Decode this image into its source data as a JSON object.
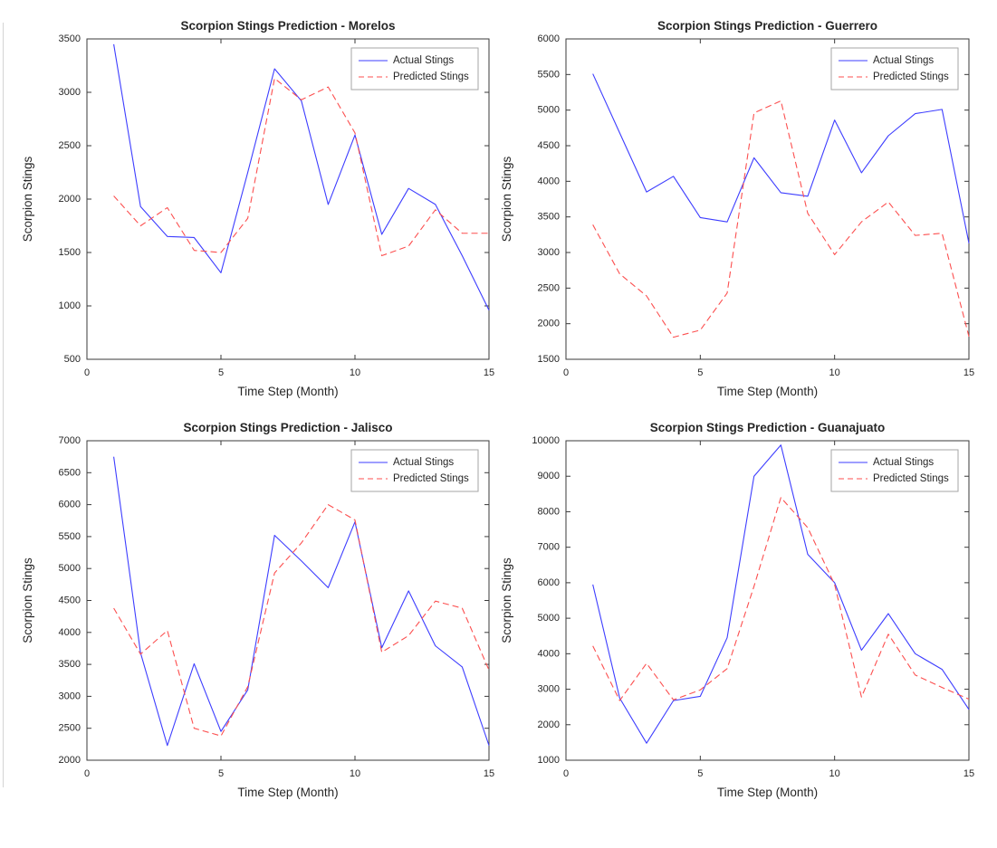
{
  "figure": {
    "background": "#ffffff",
    "edge_line_color": "#d4d4d4",
    "axis_color": "#3a3a3a",
    "tick_label_color": "#262626",
    "title_color": "#000000",
    "actual_color": "#3d3dff",
    "predicted_color": "#fc4f4f"
  },
  "chart_data": [
    {
      "type": "line",
      "title": "Scorpion Stings Prediction - Morelos",
      "xlabel": "Time Step (Month)",
      "ylabel": "Scorpion Stings",
      "x": [
        1,
        2,
        3,
        4,
        5,
        6,
        7,
        8,
        9,
        10,
        11,
        12,
        13,
        14,
        15
      ],
      "series": [
        {
          "name": "Actual Stings",
          "style": "solid",
          "color": "#3d3dff",
          "values": [
            3450,
            1930,
            1650,
            1640,
            1310,
            2250,
            3220,
            2920,
            1950,
            2600,
            1670,
            2100,
            1950,
            1470,
            960
          ]
        },
        {
          "name": "Predicted Stings",
          "style": "dashed",
          "color": "#fc4f4f",
          "values": [
            2030,
            1750,
            1920,
            1520,
            1500,
            1820,
            3130,
            2930,
            3050,
            2620,
            1470,
            1560,
            1900,
            1680,
            1680
          ]
        }
      ],
      "xlim": [
        0,
        15
      ],
      "ylim": [
        500,
        3500
      ],
      "xticks": [
        0,
        5,
        10,
        15
      ],
      "yticks": [
        500,
        1000,
        1500,
        2000,
        2500,
        3000,
        3500
      ],
      "legend_position": "top-right",
      "grid": false
    },
    {
      "type": "line",
      "title": "Scorpion Stings Prediction - Guerrero",
      "xlabel": "Time Step (Month)",
      "ylabel": "Scorpion Stings",
      "x": [
        1,
        2,
        3,
        4,
        5,
        6,
        7,
        8,
        9,
        10,
        11,
        12,
        13,
        14,
        15
      ],
      "series": [
        {
          "name": "Actual Stings",
          "style": "solid",
          "color": "#3d3dff",
          "values": [
            5510,
            4680,
            3850,
            4070,
            3490,
            3430,
            4330,
            3840,
            3790,
            4860,
            4120,
            4640,
            4950,
            5010,
            3130
          ]
        },
        {
          "name": "Predicted Stings",
          "style": "dashed",
          "color": "#fc4f4f",
          "values": [
            3390,
            2700,
            2390,
            1810,
            1910,
            2430,
            4960,
            5130,
            3550,
            2970,
            3430,
            3710,
            3240,
            3270,
            1820
          ]
        }
      ],
      "xlim": [
        0,
        15
      ],
      "ylim": [
        1500,
        6000
      ],
      "xticks": [
        0,
        5,
        10,
        15
      ],
      "yticks": [
        1500,
        2000,
        2500,
        3000,
        3500,
        4000,
        4500,
        5000,
        5500,
        6000
      ],
      "legend_position": "top-right",
      "grid": false
    },
    {
      "type": "line",
      "title": "Scorpion Stings Prediction - Jalisco",
      "xlabel": "Time Step (Month)",
      "ylabel": "Scorpion Stings",
      "x": [
        1,
        2,
        3,
        4,
        5,
        6,
        7,
        8,
        9,
        10,
        11,
        12,
        13,
        14,
        15
      ],
      "series": [
        {
          "name": "Actual Stings",
          "style": "solid",
          "color": "#3d3dff",
          "values": [
            6750,
            3680,
            2230,
            3510,
            2450,
            3100,
            5520,
            5120,
            4700,
            5730,
            3760,
            4650,
            3790,
            3460,
            2230
          ]
        },
        {
          "name": "Predicted Stings",
          "style": "dashed",
          "color": "#fc4f4f",
          "values": [
            4380,
            3660,
            4030,
            2500,
            2380,
            3150,
            4930,
            5400,
            6000,
            5760,
            3690,
            3950,
            4490,
            4380,
            3410
          ]
        }
      ],
      "xlim": [
        0,
        15
      ],
      "ylim": [
        2000,
        7000
      ],
      "xticks": [
        0,
        5,
        10,
        15
      ],
      "yticks": [
        2000,
        2500,
        3000,
        3500,
        4000,
        4500,
        5000,
        5500,
        6000,
        6500,
        7000
      ],
      "legend_position": "top-right",
      "grid": false
    },
    {
      "type": "line",
      "title": "Scorpion Stings Prediction - Guanajuato",
      "xlabel": "Time Step (Month)",
      "ylabel": "Scorpion Stings",
      "x": [
        1,
        2,
        3,
        4,
        5,
        6,
        7,
        8,
        9,
        10,
        11,
        12,
        13,
        14,
        15
      ],
      "series": [
        {
          "name": "Actual Stings",
          "style": "solid",
          "color": "#3d3dff",
          "values": [
            5950,
            2750,
            1480,
            2680,
            2800,
            4450,
            9000,
            9880,
            6800,
            6000,
            4100,
            5130,
            4000,
            3560,
            2430
          ]
        },
        {
          "name": "Predicted Stings",
          "style": "dashed",
          "color": "#fc4f4f",
          "values": [
            4220,
            2680,
            3730,
            2700,
            2980,
            3580,
            5900,
            8400,
            7550,
            5950,
            2780,
            4550,
            3400,
            3050,
            2720
          ]
        }
      ],
      "xlim": [
        0,
        15
      ],
      "ylim": [
        1000,
        10000
      ],
      "xticks": [
        0,
        5,
        10,
        15
      ],
      "yticks": [
        1000,
        2000,
        3000,
        4000,
        5000,
        6000,
        7000,
        8000,
        9000,
        10000
      ],
      "legend_position": "top-right",
      "grid": false
    }
  ]
}
